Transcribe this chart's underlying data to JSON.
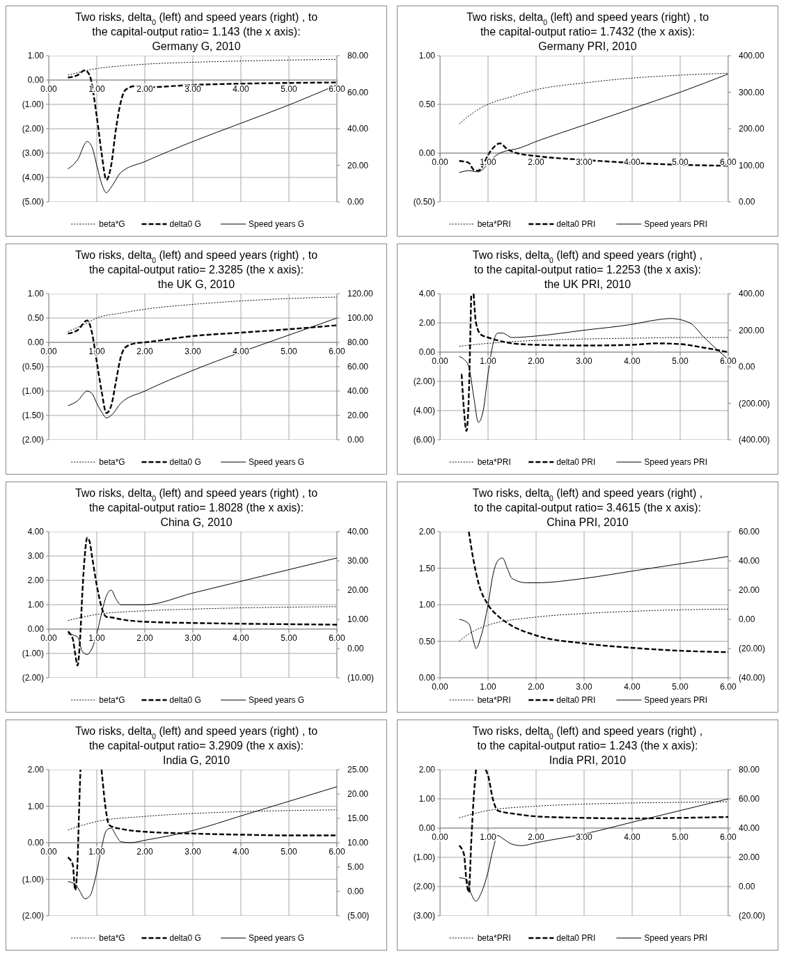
{
  "chart_data": [
    {
      "type": "line",
      "title": "Two risks, delta$_{0}$ (left) and speed years (right) ,  to\nthe capital-output ratio= 1.143 (the x axis):\nGermany G, 2010",
      "xlim": [
        0,
        6
      ],
      "xticks": [
        {
          "value": 0,
          "label": "0.00"
        },
        {
          "value": 1,
          "label": "1.00"
        },
        {
          "value": 2,
          "label": "2.00"
        },
        {
          "value": 3,
          "label": "3.00"
        },
        {
          "value": 4,
          "label": "4.00"
        },
        {
          "value": 5,
          "label": "5.00"
        },
        {
          "value": 6,
          "label": "6.00"
        }
      ],
      "ylim": [
        -5,
        1
      ],
      "yticks": [
        {
          "value": 1,
          "label": "1.00"
        },
        {
          "value": 0,
          "label": "0.00"
        },
        {
          "value": -1,
          "label": "(1.00)"
        },
        {
          "value": -2,
          "label": "(2.00)"
        },
        {
          "value": -3,
          "label": "(3.00)"
        },
        {
          "value": -4,
          "label": "(4.00)"
        },
        {
          "value": -5,
          "label": "(5.00)"
        }
      ],
      "y2lim": [
        0,
        80
      ],
      "y2ticks": [
        {
          "value": 0,
          "label": "0.00"
        },
        {
          "value": 20,
          "label": "20.00"
        },
        {
          "value": 40,
          "label": "40.00"
        },
        {
          "value": 60,
          "label": "60.00"
        },
        {
          "value": 80,
          "label": "80.00"
        }
      ],
      "grid": true,
      "legend": "bottom",
      "series": [
        {
          "name": "beta*G",
          "color": "#000000",
          "line_style": "dotted",
          "x": [
            0.4,
            0.6,
            0.8,
            1,
            1.5,
            2,
            3,
            4,
            5,
            6
          ],
          "values": [
            0.2,
            0.3,
            0.4,
            0.47,
            0.58,
            0.65,
            0.73,
            0.78,
            0.82,
            0.85
          ]
        },
        {
          "name": "delta0 G",
          "color": "#000000",
          "line_style": "dashed",
          "x": [
            0.4,
            0.6,
            0.75,
            0.85,
            1,
            1.1,
            1.2,
            1.3,
            1.4,
            1.5,
            1.6,
            1.8,
            2,
            3,
            4,
            5,
            6
          ],
          "values": [
            0.1,
            0.2,
            0.4,
            0.2,
            -1.5,
            -3,
            -4.1,
            -3.5,
            -2,
            -0.9,
            -0.4,
            -0.25,
            -0.3,
            -0.2,
            -0.15,
            -0.12,
            -0.1
          ]
        },
        {
          "name": "Speed years G",
          "color": "#000000",
          "line_style": "solid",
          "axis": "y2",
          "x": [
            0.4,
            0.6,
            0.8,
            0.9,
            1,
            1.1,
            1.2,
            1.3,
            1.5,
            2,
            3,
            4,
            5,
            6
          ],
          "values": [
            18,
            23,
            33,
            30,
            20,
            10,
            5,
            8,
            16,
            22,
            33,
            43,
            53,
            64
          ]
        }
      ]
    },
    {
      "type": "line",
      "title": "Two risks, delta$_{0}$ (left) and speed years (right) ,  to\nthe capital-output ratio= 1.7432 (the x axis):\nGermany PRI, 2010",
      "xlim": [
        0,
        6
      ],
      "xticks": [
        {
          "value": 0,
          "label": "0.00"
        },
        {
          "value": 1,
          "label": "1.00"
        },
        {
          "value": 2,
          "label": "2.00"
        },
        {
          "value": 3,
          "label": "3.00"
        },
        {
          "value": 4,
          "label": "4.00"
        },
        {
          "value": 5,
          "label": "5.00"
        },
        {
          "value": 6,
          "label": "6.00"
        }
      ],
      "ylim": [
        -0.5,
        1
      ],
      "yticks": [
        {
          "value": 1,
          "label": "1.00"
        },
        {
          "value": 0.5,
          "label": "0.50"
        },
        {
          "value": 0,
          "label": "0.00"
        },
        {
          "value": -0.5,
          "label": "(0.50)"
        }
      ],
      "y2lim": [
        0,
        400
      ],
      "y2ticks": [
        {
          "value": 0,
          "label": "0.00"
        },
        {
          "value": 100,
          "label": "100.00"
        },
        {
          "value": 200,
          "label": "200.00"
        },
        {
          "value": 300,
          "label": "300.00"
        },
        {
          "value": 400,
          "label": "400.00"
        }
      ],
      "grid": true,
      "legend": "bottom",
      "series": [
        {
          "name": "beta*PRI",
          "color": "#000000",
          "line_style": "dotted",
          "x": [
            0.4,
            0.6,
            0.8,
            1,
            1.5,
            2,
            3,
            4,
            5,
            6
          ],
          "values": [
            0.3,
            0.38,
            0.45,
            0.5,
            0.58,
            0.65,
            0.72,
            0.77,
            0.8,
            0.82
          ]
        },
        {
          "name": "delta0 PRI",
          "color": "#000000",
          "line_style": "dashed",
          "x": [
            0.4,
            0.6,
            0.7,
            0.8,
            0.9,
            1,
            1.1,
            1.25,
            1.4,
            1.6,
            2,
            3,
            4,
            5,
            6
          ],
          "values": [
            -0.08,
            -0.1,
            -0.17,
            -0.18,
            -0.12,
            -0.02,
            0.05,
            0.1,
            0.04,
            0,
            -0.03,
            -0.07,
            -0.1,
            -0.12,
            -0.13
          ]
        },
        {
          "name": "Speed years PRI",
          "color": "#000000",
          "line_style": "solid",
          "axis": "y2",
          "x": [
            0.4,
            0.6,
            0.8,
            0.9,
            1,
            1.2,
            1.4,
            1.6,
            2,
            3,
            4,
            5,
            6
          ],
          "values": [
            80,
            85,
            82,
            90,
            105,
            130,
            140,
            145,
            165,
            210,
            255,
            300,
            350
          ]
        }
      ]
    },
    {
      "type": "line",
      "title": "Two risks, delta$_{0}$ (left) and speed years (right) ,  to\nthe capital-output ratio= 2.3285 (the x axis):\nthe UK G, 2010",
      "xlim": [
        0,
        6
      ],
      "xticks": [
        {
          "value": 0,
          "label": "0.00"
        },
        {
          "value": 1,
          "label": "1.00"
        },
        {
          "value": 2,
          "label": "2.00"
        },
        {
          "value": 3,
          "label": "3.00"
        },
        {
          "value": 4,
          "label": "4.00"
        },
        {
          "value": 5,
          "label": "5.00"
        },
        {
          "value": 6,
          "label": "6.00"
        }
      ],
      "ylim": [
        -2,
        1
      ],
      "yticks": [
        {
          "value": 1,
          "label": "1.00"
        },
        {
          "value": 0.5,
          "label": "0.50"
        },
        {
          "value": 0,
          "label": "0.00"
        },
        {
          "value": -0.5,
          "label": "(0.50)"
        },
        {
          "value": -1,
          "label": "(1.00)"
        },
        {
          "value": -1.5,
          "label": "(1.50)"
        },
        {
          "value": -2,
          "label": "(2.00)"
        }
      ],
      "y2lim": [
        0,
        120
      ],
      "y2ticks": [
        {
          "value": 0,
          "label": "0.00"
        },
        {
          "value": 20,
          "label": "20.00"
        },
        {
          "value": 40,
          "label": "40.00"
        },
        {
          "value": 60,
          "label": "60.00"
        },
        {
          "value": 80,
          "label": "80.00"
        },
        {
          "value": 100,
          "label": "100.00"
        },
        {
          "value": 120,
          "label": "120.00"
        }
      ],
      "grid": true,
      "legend": "bottom",
      "series": [
        {
          "name": "beta*G",
          "color": "#000000",
          "line_style": "dotted",
          "x": [
            0.4,
            0.8,
            1,
            1.5,
            2,
            3,
            4,
            5,
            6
          ],
          "values": [
            0.22,
            0.4,
            0.5,
            0.6,
            0.68,
            0.78,
            0.85,
            0.9,
            0.93
          ]
        },
        {
          "name": "delta0 G",
          "color": "#000000",
          "line_style": "dashed",
          "x": [
            0.4,
            0.6,
            0.8,
            0.9,
            1,
            1.1,
            1.2,
            1.3,
            1.4,
            1.5,
            1.6,
            1.8,
            2,
            3,
            4,
            5,
            6
          ],
          "values": [
            0.18,
            0.25,
            0.45,
            0.2,
            -0.4,
            -1,
            -1.45,
            -1.3,
            -0.8,
            -0.3,
            -0.1,
            -0.02,
            0,
            0.13,
            0.2,
            0.27,
            0.35
          ]
        },
        {
          "name": "Speed years G",
          "color": "#000000",
          "line_style": "solid",
          "axis": "y2",
          "x": [
            0.4,
            0.6,
            0.8,
            0.9,
            1,
            1.1,
            1.2,
            1.3,
            1.5,
            2,
            3,
            4,
            5,
            6
          ],
          "values": [
            28,
            32,
            40,
            38,
            30,
            23,
            18,
            20,
            30,
            40,
            57,
            72,
            86,
            100
          ]
        }
      ]
    },
    {
      "type": "line",
      "title": "Two risks, delta$_{0}$ (left) and speed years (right) ,\nto the capital-output ratio= 1.2253 (the x axis):\nthe UK PRI, 2010",
      "xlim": [
        0,
        6
      ],
      "xticks": [
        {
          "value": 0,
          "label": "0.00"
        },
        {
          "value": 1,
          "label": "1.00"
        },
        {
          "value": 2,
          "label": "2.00"
        },
        {
          "value": 3,
          "label": "3.00"
        },
        {
          "value": 4,
          "label": "4.00"
        },
        {
          "value": 5,
          "label": "5.00"
        },
        {
          "value": 6,
          "label": "6.00"
        }
      ],
      "ylim": [
        -6,
        4
      ],
      "yticks": [
        {
          "value": 4,
          "label": "4.00"
        },
        {
          "value": 2,
          "label": "2.00"
        },
        {
          "value": 0,
          "label": "0.00"
        },
        {
          "value": -2,
          "label": "(2.00)"
        },
        {
          "value": -4,
          "label": "(4.00)"
        },
        {
          "value": -6,
          "label": "(6.00)"
        }
      ],
      "y2lim": [
        -400,
        400
      ],
      "y2ticks": [
        {
          "value": -400,
          "label": "(400.00)"
        },
        {
          "value": -200,
          "label": "(200.00)"
        },
        {
          "value": 0,
          "label": "0.00"
        },
        {
          "value": 200,
          "label": "200.00"
        },
        {
          "value": 400,
          "label": "400.00"
        }
      ],
      "grid": true,
      "legend": "bottom",
      "series": [
        {
          "name": "beta*PRI",
          "color": "#000000",
          "line_style": "dotted",
          "x": [
            0.4,
            1,
            2,
            3,
            4,
            5,
            6
          ],
          "values": [
            0.4,
            0.6,
            0.8,
            0.9,
            0.95,
            1,
            1
          ]
        },
        {
          "name": "delta0 PRI",
          "color": "#000000",
          "line_style": "dashed",
          "x": [
            0.45,
            0.5,
            0.55,
            0.6,
            0.63,
            0.65,
            0.67,
            0.7,
            0.75,
            0.85,
            1,
            1.2,
            1.5,
            2,
            3,
            4,
            4.5,
            5,
            5.5,
            6
          ],
          "values": [
            -1.5,
            -4,
            -5.4,
            -3,
            1,
            4,
            null,
            4,
            2,
            1.2,
            1,
            0.8,
            0.6,
            0.5,
            0.45,
            0.5,
            0.6,
            0.55,
            0.3,
            0
          ]
        },
        {
          "name": "Speed years PRI",
          "color": "#000000",
          "line_style": "solid",
          "axis": "y2",
          "x": [
            0.4,
            0.5,
            0.6,
            0.7,
            0.8,
            0.9,
            1,
            1.1,
            1.2,
            1.3,
            1.5,
            2,
            3,
            4,
            4.5,
            4.8,
            5.2,
            5.5,
            6
          ],
          "values": [
            56,
            40,
            0,
            -160,
            -304,
            -240,
            -40,
            120,
            184,
            184,
            160,
            168,
            200,
            232,
            256,
            264,
            240,
            160,
            40
          ]
        }
      ]
    },
    {
      "type": "line",
      "title": "Two risks, delta$_{0}$ (left) and speed years (right) ,  to\nthe capital-output ratio= 1.8028 (the x axis):\nChina G, 2010",
      "xlim": [
        0,
        6
      ],
      "xticks": [
        {
          "value": 0,
          "label": "0.00"
        },
        {
          "value": 1,
          "label": "1.00"
        },
        {
          "value": 2,
          "label": "2.00"
        },
        {
          "value": 3,
          "label": "3.00"
        },
        {
          "value": 4,
          "label": "4.00"
        },
        {
          "value": 5,
          "label": "5.00"
        },
        {
          "value": 6,
          "label": "6.00"
        }
      ],
      "ylim": [
        -2,
        4
      ],
      "yticks": [
        {
          "value": 4,
          "label": "4.00"
        },
        {
          "value": 3,
          "label": "3.00"
        },
        {
          "value": 2,
          "label": "2.00"
        },
        {
          "value": 1,
          "label": "1.00"
        },
        {
          "value": 0,
          "label": "0.00"
        },
        {
          "value": -1,
          "label": "(1.00)"
        },
        {
          "value": -2,
          "label": "(2.00)"
        }
      ],
      "y2lim": [
        -10,
        40
      ],
      "y2ticks": [
        {
          "value": -10,
          "label": "(10.00)"
        },
        {
          "value": 0,
          "label": "0.00"
        },
        {
          "value": 10,
          "label": "10.00"
        },
        {
          "value": 20,
          "label": "20.00"
        },
        {
          "value": 30,
          "label": "30.00"
        },
        {
          "value": 40,
          "label": "40.00"
        }
      ],
      "grid": true,
      "legend": "bottom",
      "series": [
        {
          "name": "beta*G",
          "color": "#000000",
          "line_style": "dotted",
          "x": [
            0.4,
            1,
            2,
            3,
            4,
            5,
            6
          ],
          "values": [
            0.35,
            0.6,
            0.75,
            0.82,
            0.87,
            0.9,
            0.92
          ]
        },
        {
          "name": "delta0 G",
          "color": "#000000",
          "line_style": "dashed",
          "x": [
            0.4,
            0.5,
            0.55,
            0.6,
            0.65,
            0.7,
            0.75,
            0.8,
            0.85,
            0.9,
            1,
            1.1,
            1.2,
            1.3,
            1.5,
            2,
            3,
            4,
            5,
            6
          ],
          "values": [
            -0.1,
            -0.4,
            -1,
            -1.5,
            -0.5,
            1.5,
            3,
            3.75,
            3.6,
            3,
            1.8,
            0.9,
            0.5,
            0.48,
            0.4,
            0.3,
            0.25,
            0.22,
            0.2,
            0.18
          ]
        },
        {
          "name": "Speed years G",
          "color": "#000000",
          "line_style": "solid",
          "axis": "y2",
          "x": [
            0.4,
            0.6,
            0.7,
            0.8,
            0.9,
            1,
            1.1,
            1.2,
            1.3,
            1.4,
            1.5,
            1.7,
            2,
            3,
            4,
            5,
            6
          ],
          "values": [
            5,
            4,
            -1,
            -2,
            0,
            5,
            12,
            18,
            20,
            17,
            15,
            15,
            15,
            19,
            23,
            27,
            31
          ]
        }
      ]
    },
    {
      "type": "line",
      "title": "Two risks, delta$_{0}$ (left) and speed years (right) ,\nto the capital-output ratio= 3.4615 (the x axis):\nChina PRI, 2010",
      "xlim": [
        0,
        6
      ],
      "xticks": [
        {
          "value": 0,
          "label": "0.00"
        },
        {
          "value": 1,
          "label": "1.00"
        },
        {
          "value": 2,
          "label": "2.00"
        },
        {
          "value": 3,
          "label": "3.00"
        },
        {
          "value": 4,
          "label": "4.00"
        },
        {
          "value": 5,
          "label": "5.00"
        },
        {
          "value": 6,
          "label": "6.00"
        }
      ],
      "ylim": [
        0,
        2
      ],
      "yticks": [
        {
          "value": 2,
          "label": "2.00"
        },
        {
          "value": 1.5,
          "label": "1.50"
        },
        {
          "value": 1,
          "label": "1.00"
        },
        {
          "value": 0.5,
          "label": "0.50"
        },
        {
          "value": 0,
          "label": "0.00"
        }
      ],
      "y2lim": [
        -40,
        60
      ],
      "y2ticks": [
        {
          "value": -40,
          "label": "(40.00)"
        },
        {
          "value": -20,
          "label": "(20.00)"
        },
        {
          "value": 0,
          "label": "0.00"
        },
        {
          "value": 20,
          "label": "20.00"
        },
        {
          "value": 40,
          "label": "40.00"
        },
        {
          "value": 60,
          "label": "60.00"
        }
      ],
      "grid": true,
      "legend": "bottom",
      "series": [
        {
          "name": "beta*PRI",
          "color": "#000000",
          "line_style": "dotted",
          "x": [
            0.4,
            0.6,
            1,
            2,
            3,
            4,
            5,
            6
          ],
          "values": [
            0.5,
            0.6,
            0.72,
            0.83,
            0.88,
            0.91,
            0.93,
            0.94
          ]
        },
        {
          "name": "delta0 PRI",
          "color": "#000000",
          "line_style": "dashed",
          "x": [
            0.6,
            0.7,
            0.8,
            1,
            1.2,
            1.4,
            2,
            3,
            4,
            5,
            6
          ],
          "values": [
            2,
            1.6,
            1.3,
            1,
            0.85,
            0.75,
            0.58,
            0.47,
            0.41,
            0.37,
            0.35
          ]
        },
        {
          "name": "Speed years PRI",
          "color": "#000000",
          "line_style": "solid",
          "axis": "y2",
          "x": [
            0.4,
            0.6,
            0.7,
            0.75,
            0.85,
            1,
            1.1,
            1.2,
            1.3,
            1.4,
            1.5,
            1.8,
            2,
            3,
            4,
            5,
            6
          ],
          "values": [
            0,
            -3,
            -15,
            -20,
            -12,
            10,
            30,
            40,
            42,
            35,
            28,
            25,
            25,
            28,
            33,
            38,
            43
          ]
        }
      ]
    },
    {
      "type": "line",
      "title": "Two risks, delta$_{0}$ (left) and speed years (right) ,  to\nthe capital-output ratio= 3.2909 (the x axis):\nIndia G, 2010",
      "xlim": [
        0,
        6
      ],
      "xticks": [
        {
          "value": 0,
          "label": "0.00"
        },
        {
          "value": 1,
          "label": "1.00"
        },
        {
          "value": 2,
          "label": "2.00"
        },
        {
          "value": 3,
          "label": "3.00"
        },
        {
          "value": 4,
          "label": "4.00"
        },
        {
          "value": 5,
          "label": "5.00"
        },
        {
          "value": 6,
          "label": "6.00"
        }
      ],
      "ylim": [
        -2,
        2
      ],
      "yticks": [
        {
          "value": 2,
          "label": "2.00"
        },
        {
          "value": 1,
          "label": "1.00"
        },
        {
          "value": 0,
          "label": "0.00"
        },
        {
          "value": -1,
          "label": "(1.00)"
        },
        {
          "value": -2,
          "label": "(2.00)"
        }
      ],
      "y2lim": [
        -5,
        25
      ],
      "y2ticks": [
        {
          "value": -5,
          "label": "(5.00)"
        },
        {
          "value": 0,
          "label": "0.00"
        },
        {
          "value": 5,
          "label": "5.00"
        },
        {
          "value": 10,
          "label": "10.00"
        },
        {
          "value": 15,
          "label": "15.00"
        },
        {
          "value": 20,
          "label": "20.00"
        },
        {
          "value": 25,
          "label": "25.00"
        }
      ],
      "grid": true,
      "legend": "bottom",
      "series": [
        {
          "name": "beta*G",
          "color": "#000000",
          "line_style": "dotted",
          "x": [
            0.4,
            1,
            2,
            3,
            4,
            5,
            6
          ],
          "values": [
            0.35,
            0.58,
            0.72,
            0.8,
            0.85,
            0.88,
            0.9
          ]
        },
        {
          "name": "delta0 G",
          "color": "#000000",
          "line_style": "dashed",
          "x": [
            0.4,
            0.5,
            0.55,
            0.6,
            0.63,
            0.66,
            0.8,
            1.1,
            1.2,
            1.25,
            1.3,
            1.5,
            2,
            3,
            4,
            5,
            6
          ],
          "values": [
            -0.4,
            -0.6,
            -1.3,
            -0.5,
            0.8,
            2,
            null,
            2,
            0.8,
            0.5,
            0.45,
            0.38,
            0.3,
            0.25,
            0.22,
            0.2,
            0.2
          ]
        },
        {
          "name": "Speed years G",
          "color": "#000000",
          "line_style": "solid",
          "axis": "y2",
          "x": [
            0.4,
            0.55,
            0.65,
            0.75,
            0.85,
            1,
            1.1,
            1.2,
            1.3,
            1.4,
            1.5,
            1.7,
            2,
            3,
            4,
            5,
            6
          ],
          "values": [
            2,
            1.5,
            0,
            -1.5,
            -1,
            4,
            9,
            12.5,
            13,
            11.5,
            10.2,
            10,
            10.5,
            12.5,
            15.5,
            18.5,
            21.5
          ]
        }
      ]
    },
    {
      "type": "line",
      "title": "Two risks, delta$_{0}$ (left) and speed years (right) ,\nto the capital-output ratio= 1.243 (the x axis):\nIndia PRI, 2010",
      "xlim": [
        0,
        6
      ],
      "xticks": [
        {
          "value": 0,
          "label": "0.00"
        },
        {
          "value": 1,
          "label": "1.00"
        },
        {
          "value": 2,
          "label": "2.00"
        },
        {
          "value": 3,
          "label": "3.00"
        },
        {
          "value": 4,
          "label": "4.00"
        },
        {
          "value": 5,
          "label": "5.00"
        },
        {
          "value": 6,
          "label": "6.00"
        }
      ],
      "ylim": [
        -3,
        2
      ],
      "yticks": [
        {
          "value": 2,
          "label": "2.00"
        },
        {
          "value": 1,
          "label": "1.00"
        },
        {
          "value": 0,
          "label": "0.00"
        },
        {
          "value": -1,
          "label": "(1.00)"
        },
        {
          "value": -2,
          "label": "(2.00)"
        },
        {
          "value": -3,
          "label": "(3.00)"
        }
      ],
      "y2lim": [
        -20,
        80
      ],
      "y2ticks": [
        {
          "value": -20,
          "label": "(20.00)"
        },
        {
          "value": 0,
          "label": "0.00"
        },
        {
          "value": 20,
          "label": "20.00"
        },
        {
          "value": 40,
          "label": "40.00"
        },
        {
          "value": 60,
          "label": "60.00"
        },
        {
          "value": 80,
          "label": "80.00"
        }
      ],
      "grid": true,
      "legend": "bottom",
      "series": [
        {
          "name": "beta*PRI",
          "color": "#000000",
          "line_style": "dotted",
          "x": [
            0.4,
            1,
            2,
            3,
            4,
            5,
            6
          ],
          "values": [
            0.35,
            0.6,
            0.75,
            0.82,
            0.86,
            0.88,
            0.9
          ]
        },
        {
          "name": "delta0 PRI",
          "color": "#000000",
          "line_style": "dashed",
          "x": [
            0.4,
            0.5,
            0.55,
            0.6,
            0.65,
            0.7,
            0.75,
            0.85,
            0.95,
            1,
            1.1,
            1.2,
            1.3,
            1.5,
            2,
            3,
            4,
            5,
            6
          ],
          "values": [
            -0.6,
            -0.9,
            -1.8,
            -2.2,
            -0.5,
            1,
            2,
            null,
            2,
            1.8,
            1,
            0.6,
            0.55,
            0.5,
            0.4,
            0.35,
            0.33,
            0.35,
            0.38
          ]
        },
        {
          "name": "Speed years PRI",
          "color": "#000000",
          "line_style": "solid",
          "axis": "y2",
          "x": [
            0.4,
            0.55,
            0.65,
            0.75,
            0.85,
            1,
            1.1,
            1.2,
            1.3,
            1.5,
            1.7,
            2,
            3,
            4,
            5,
            6
          ],
          "values": [
            6,
            5,
            -5,
            -10,
            -5,
            10,
            25,
            35,
            33,
            29,
            28,
            30,
            36,
            44,
            52,
            60
          ]
        }
      ]
    }
  ]
}
